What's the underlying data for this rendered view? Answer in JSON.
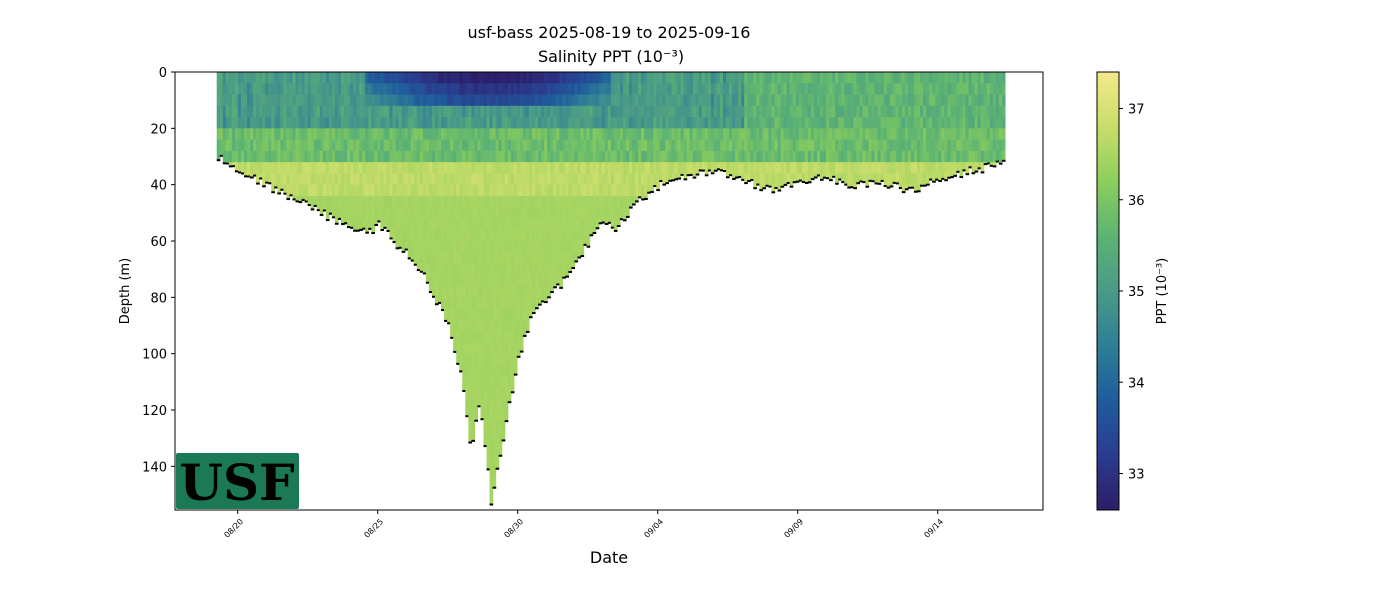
{
  "chart_data": {
    "type": "heatmap",
    "title": "usf-bass 2025-08-19 to 2025-09-16",
    "subtitle": "Salinity PPT (10⁻³)",
    "xlabel": "Date",
    "ylabel": "Depth (m)",
    "colorbar_label": "PPT (10⁻³)",
    "x_ticks": [
      "08/20",
      "08/25",
      "08/30",
      "09/04",
      "09/09",
      "09/14"
    ],
    "x_tick_days": [
      1,
      6,
      11,
      16,
      21,
      26
    ],
    "xlim_days": [
      -1.24,
      29.76
    ],
    "y_ticks": [
      0,
      20,
      40,
      60,
      80,
      100,
      120,
      140
    ],
    "ylim": [
      155.5,
      0
    ],
    "y_inverted": true,
    "colorbar_ticks": [
      33,
      34,
      35,
      36,
      37
    ],
    "colorbar_range": [
      32.6,
      37.4
    ],
    "colormap": [
      "#2c1e67",
      "#2b3c8f",
      "#1f5c9c",
      "#2e7f96",
      "#4a9a87",
      "#5cb373",
      "#8cce5c",
      "#c9dd6a",
      "#f4e98a"
    ],
    "bottom_depth_profile": {
      "day": [
        0.25,
        1,
        2,
        3,
        4,
        5,
        5.8,
        6,
        6.5,
        7,
        7.5,
        8,
        8.5,
        9,
        9.3,
        9.6,
        10,
        10.5,
        11,
        11.5,
        12,
        12.5,
        13,
        13.5,
        14,
        14.5,
        15,
        16,
        17,
        18,
        19,
        20,
        21,
        22,
        23,
        24,
        25,
        26,
        27,
        28.4
      ],
      "depth_m": [
        30,
        34,
        40,
        45,
        50,
        55,
        57,
        53,
        60,
        64,
        70,
        80,
        90,
        110,
        135,
        115,
        153,
        125,
        100,
        85,
        80,
        75,
        68,
        60,
        52,
        55,
        48,
        40,
        37,
        35,
        38,
        42,
        38,
        37,
        40,
        39,
        42,
        38,
        35,
        32
      ]
    },
    "surface_fresh_layer": {
      "day_range": [
        5.5,
        14.3
      ],
      "min_salinity": 32.6,
      "depth_range_m": [
        0,
        12
      ]
    },
    "layers": [
      {
        "depth_range_m": [
          0,
          20
        ],
        "salinity": 35.3
      },
      {
        "depth_range_m": [
          20,
          35
        ],
        "salinity": 36.1
      },
      {
        "depth_range_m": [
          28,
          40
        ],
        "salinity": 36.7
      },
      {
        "depth_range_m": [
          40,
          155
        ],
        "salinity": 36.4
      }
    ],
    "legend": "colorbar-right",
    "grid": false
  },
  "logo": {
    "text": "USF",
    "colors": {
      "bg": "#1b7a55",
      "text": "#f3e9b0"
    }
  }
}
